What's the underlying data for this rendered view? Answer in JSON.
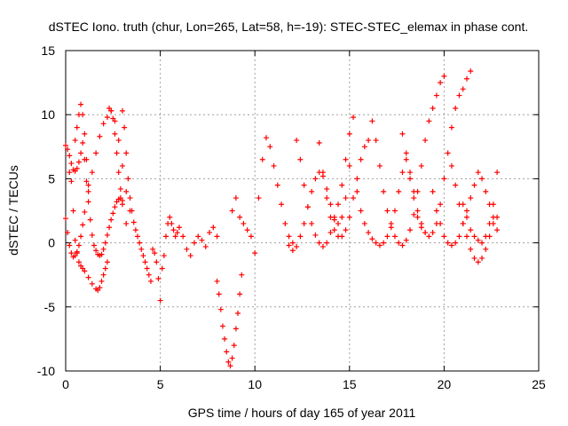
{
  "chart_data": {
    "type": "scatter",
    "title": "dSTEC Iono. truth (chur, Lon=265, Lat=58, h=-19): STEC-STEC_elemax in phase cont.",
    "xlabel": "GPS time / hours of day 165 of year 2011",
    "ylabel": "dSTEC  / TECUs",
    "xlim": [
      0,
      25
    ],
    "ylim": [
      -10,
      15
    ],
    "xticks": [
      "0",
      "5",
      "10",
      "15",
      "20",
      "25"
    ],
    "yticks": [
      "-10",
      "-5",
      "0",
      "5",
      "10",
      "15"
    ],
    "grid": true,
    "marker": "+",
    "color": "#ff0000",
    "series": [
      {
        "x": [
          0.0,
          0.1,
          0.2,
          0.3,
          0.4,
          0.5,
          0.6,
          0.7,
          0.8,
          0.9,
          1.0,
          1.1,
          1.2,
          1.3,
          1.4,
          1.5,
          1.6,
          1.7,
          1.8,
          1.9,
          2.0,
          2.1,
          2.2,
          2.3,
          2.4,
          2.5,
          2.6,
          2.7,
          2.8,
          2.9,
          3.0
        ],
        "y": [
          7.6,
          7.3,
          6.8,
          6.2,
          5.7,
          5.6,
          5.8,
          6.3,
          7.0,
          7.8,
          6.5,
          4.8,
          3.2,
          1.8,
          0.6,
          -0.2,
          -0.6,
          -0.9,
          -1.0,
          -0.9,
          -0.5,
          0.0,
          0.6,
          1.2,
          1.8,
          2.3,
          2.8,
          3.2,
          3.4,
          3.5,
          3.3
        ]
      },
      {
        "x": [
          0.0,
          0.1,
          0.2,
          0.3,
          0.4,
          0.5,
          0.6,
          0.7,
          0.8,
          0.9,
          1.0,
          1.2,
          1.4,
          1.6,
          1.8,
          2.0,
          2.2,
          2.4,
          2.6,
          2.8,
          3.0,
          3.2,
          3.4
        ],
        "y": [
          1.9,
          0.8,
          -0.2,
          -0.8,
          -1.1,
          -1.0,
          -0.7,
          -0.2,
          0.5,
          1.4,
          2.4,
          4.0,
          5.5,
          7.0,
          8.3,
          9.3,
          9.8,
          10.3,
          9.5,
          8.0,
          6.0,
          4.0,
          2.5
        ]
      },
      {
        "x": [
          0.2,
          0.3,
          0.4,
          0.5,
          0.6,
          0.7,
          0.8,
          0.9,
          1.0,
          1.2,
          1.4,
          1.6,
          1.7,
          1.8,
          1.9,
          2.0,
          2.1,
          2.2
        ],
        "y": [
          5.5,
          4.8,
          2.5,
          0.2,
          -0.8,
          -1.5,
          -1.8,
          -2.0,
          -2.2,
          -2.7,
          -3.2,
          -3.6,
          -3.7,
          -3.5,
          -3.0,
          -2.5,
          -2.0,
          -1.5
        ]
      },
      {
        "x": [
          0.5,
          0.6,
          0.7,
          0.8,
          0.9,
          1.0,
          1.1,
          1.2
        ],
        "y": [
          8.0,
          9.0,
          10.0,
          10.8,
          10.0,
          8.5,
          6.5,
          4.5
        ]
      },
      {
        "x": [
          2.3,
          2.4,
          2.5,
          2.6,
          2.7,
          2.8,
          2.9,
          3.0,
          3.2
        ],
        "y": [
          10.5,
          10.3,
          9.7,
          8.5,
          7.0,
          5.5,
          4.2,
          3.0,
          1.5
        ]
      },
      {
        "x": [
          3.0,
          3.1,
          3.2,
          3.3,
          3.4,
          3.5,
          3.6,
          3.7,
          3.8,
          3.9,
          4.0,
          4.1,
          4.2,
          4.3,
          4.4,
          4.5
        ],
        "y": [
          10.3,
          9.0,
          7.0,
          5.0,
          3.5,
          2.5,
          1.6,
          1.0,
          0.5,
          0.0,
          -0.5,
          -1.0,
          -1.5,
          -2.0,
          -2.5,
          -3.0
        ]
      },
      {
        "x": [
          4.6,
          4.7,
          4.8,
          4.9,
          5.0,
          5.1,
          5.2,
          5.3,
          5.4,
          5.5,
          5.6,
          5.7,
          5.8,
          5.9,
          6.0,
          6.2,
          6.4,
          6.6,
          6.8,
          7.0,
          7.2,
          7.4,
          7.6,
          7.8,
          8.0
        ],
        "y": [
          -0.5,
          -0.8,
          -1.5,
          -2.8,
          -4.5,
          -2.0,
          -1.0,
          0.5,
          1.5,
          2.0,
          1.5,
          1.0,
          0.5,
          0.8,
          1.2,
          0.5,
          -0.5,
          -1.0,
          0.0,
          0.5,
          0.2,
          -0.3,
          0.8,
          1.2,
          0.5
        ]
      },
      {
        "x": [
          8.0,
          8.1,
          8.2,
          8.3,
          8.4,
          8.5,
          8.6,
          8.7,
          8.8,
          8.9,
          9.0,
          9.1,
          9.2,
          9.3
        ],
        "y": [
          -3.0,
          -4.0,
          -5.2,
          -6.5,
          -7.5,
          -8.5,
          -9.3,
          -9.6,
          -9.0,
          -8.0,
          -6.7,
          -5.5,
          -4.0,
          -2.5
        ]
      },
      {
        "x": [
          8.8,
          9.0,
          9.2,
          9.4,
          9.6,
          9.8,
          10.0,
          10.2,
          10.4,
          10.6,
          10.8,
          11.0,
          11.2,
          11.4,
          11.6,
          11.8,
          12.0
        ],
        "y": [
          2.5,
          3.5,
          2.0,
          1.5,
          1.0,
          0.5,
          -0.8,
          3.5,
          6.5,
          8.2,
          7.5,
          6.0,
          4.5,
          3.0,
          1.5,
          0.5,
          0.0
        ]
      },
      {
        "x": [
          11.8,
          12.0,
          12.2,
          12.4,
          12.6,
          12.8,
          13.0,
          13.2,
          13.4,
          13.6,
          13.8,
          14.0,
          14.2,
          14.4,
          14.6,
          14.8,
          15.0,
          15.2
        ],
        "y": [
          -0.2,
          -0.6,
          -0.3,
          0.5,
          1.5,
          2.8,
          4.0,
          5.0,
          5.5,
          5.2,
          4.2,
          3.0,
          2.0,
          1.5,
          2.0,
          3.5,
          6.0,
          9.8
        ]
      },
      {
        "x": [
          12.2,
          12.4,
          12.6,
          12.8,
          13.0,
          13.2,
          13.4,
          13.6,
          13.8,
          14.0,
          14.2,
          14.4,
          14.6,
          14.8,
          15.0
        ],
        "y": [
          8.0,
          6.5,
          4.5,
          2.8,
          1.5,
          0.6,
          0.0,
          -0.3,
          0.0,
          0.8,
          1.8,
          3.0,
          4.5,
          6.5,
          8.5
        ]
      },
      {
        "x": [
          13.4,
          13.6,
          13.8,
          14.0,
          14.2,
          14.4,
          14.6,
          14.8,
          15.0,
          15.2,
          15.4,
          15.6,
          15.8,
          16.0
        ],
        "y": [
          7.8,
          5.5,
          3.5,
          2.0,
          1.0,
          0.5,
          0.5,
          1.0,
          2.0,
          3.5,
          5.0,
          6.5,
          7.5,
          8.0
        ]
      },
      {
        "x": [
          15.4,
          15.6,
          15.8,
          16.0,
          16.2,
          16.4,
          16.6,
          16.8,
          17.0,
          17.2,
          17.4,
          17.6,
          17.8,
          18.0,
          18.2,
          18.4,
          18.6,
          18.8,
          19.0
        ],
        "y": [
          4.0,
          2.5,
          1.5,
          0.8,
          0.3,
          0.0,
          -0.2,
          0.0,
          0.5,
          1.5,
          2.5,
          4.0,
          5.5,
          6.5,
          5.0,
          3.5,
          2.0,
          1.2,
          0.8
        ]
      },
      {
        "x": [
          16.2,
          16.4,
          16.6,
          16.8,
          17.0,
          17.2,
          17.4,
          17.6,
          17.8,
          18.0,
          18.2,
          18.4,
          18.6,
          18.8,
          19.0,
          19.2,
          19.4,
          19.6,
          19.8,
          20.0
        ],
        "y": [
          9.5,
          8.0,
          6.0,
          4.0,
          2.5,
          1.2,
          0.5,
          0.0,
          -0.2,
          0.2,
          1.0,
          2.2,
          4.0,
          6.0,
          8.0,
          9.5,
          10.5,
          11.5,
          12.5,
          13.0
        ]
      },
      {
        "x": [
          17.8,
          18.0,
          18.2,
          18.4,
          18.6,
          18.8,
          19.0,
          19.2,
          19.4,
          19.6,
          19.8,
          20.0,
          20.2,
          20.4,
          20.6,
          20.8,
          21.0,
          21.2,
          21.4
        ],
        "y": [
          8.5,
          7.0,
          5.5,
          4.0,
          2.5,
          1.5,
          0.8,
          0.5,
          0.8,
          1.5,
          3.0,
          5.0,
          7.0,
          9.0,
          10.5,
          11.5,
          12.0,
          12.8,
          13.4
        ]
      },
      {
        "x": [
          19.4,
          19.6,
          19.8,
          20.0,
          20.2,
          20.4,
          20.6,
          20.8,
          21.0,
          21.2,
          21.4,
          21.6,
          21.8,
          22.0,
          22.2,
          22.4,
          22.6,
          22.8
        ],
        "y": [
          4.0,
          2.5,
          1.5,
          0.5,
          0.0,
          -0.2,
          0.0,
          0.5,
          1.5,
          2.5,
          3.5,
          4.5,
          5.5,
          5.0,
          4.0,
          3.0,
          2.0,
          1.0
        ]
      },
      {
        "x": [
          20.4,
          20.6,
          20.8,
          21.0,
          21.2,
          21.4,
          21.6,
          21.8,
          22.0,
          22.2,
          22.4,
          22.6,
          22.8
        ],
        "y": [
          6.0,
          4.5,
          3.0,
          1.5,
          0.5,
          -0.5,
          -1.2,
          -1.5,
          -1.2,
          -0.5,
          0.5,
          1.5,
          2.0
        ]
      },
      {
        "x": [
          21.0,
          21.2,
          21.4,
          21.6,
          21.8,
          22.0,
          22.2,
          22.4,
          22.6,
          22.8
        ],
        "y": [
          3.0,
          2.0,
          1.0,
          0.5,
          0.2,
          0.0,
          0.5,
          1.5,
          3.0,
          5.5
        ]
      }
    ]
  }
}
